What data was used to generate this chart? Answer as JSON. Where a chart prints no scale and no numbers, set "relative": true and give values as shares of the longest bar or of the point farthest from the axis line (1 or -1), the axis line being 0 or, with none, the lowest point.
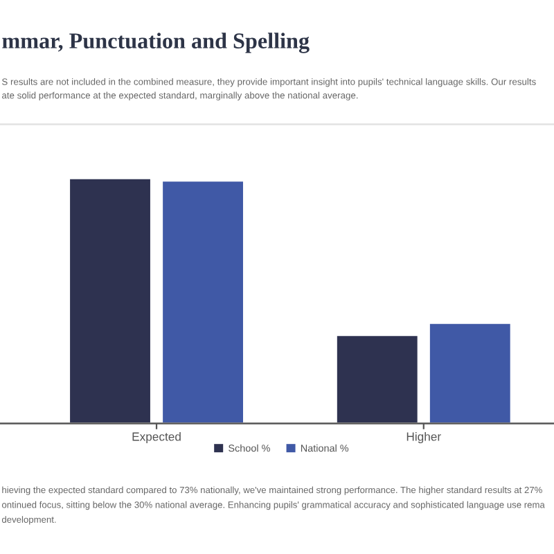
{
  "chart_data": {
    "type": "bar",
    "title": "mmar, Punctuation and Spelling",
    "subtitle": "S results are not included in the combined measure, they provide important insight into pupils' technical language skills. Our results\nate solid performance at the expected standard, marginally above the national average.",
    "categories": [
      "Expected",
      "Higher"
    ],
    "series": [
      {
        "name": "School %",
        "color": "#2e3250",
        "values": [
          1,
          0.36
        ]
      },
      {
        "name": "National %",
        "color": "#4059a6",
        "values": [
          0.99,
          0.41
        ]
      }
    ],
    "relative": true,
    "legend": "bottom",
    "annotations": [
      "hieving the expected standard compared to 73% nationally, we've maintained strong performance. The higher standard results at 27%\nontinued focus, sitting below the 30% national average. Enhancing pupils' grammatical accuracy and sophisticated language use rema\ndevelopment."
    ]
  }
}
